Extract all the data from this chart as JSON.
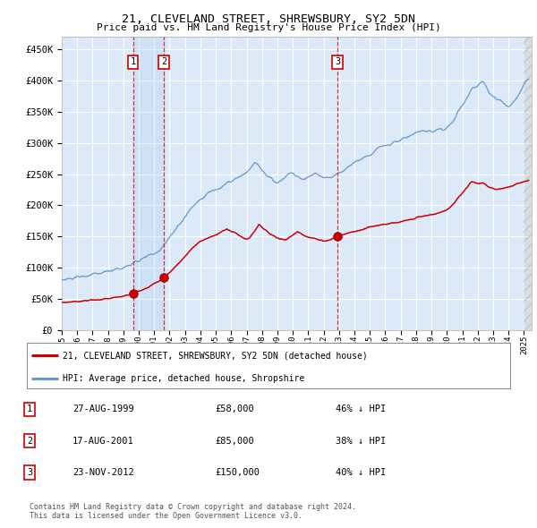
{
  "title": "21, CLEVELAND STREET, SHREWSBURY, SY2 5DN",
  "subtitle": "Price paid vs. HM Land Registry's House Price Index (HPI)",
  "ylabel_ticks": [
    "£0",
    "£50K",
    "£100K",
    "£150K",
    "£200K",
    "£250K",
    "£300K",
    "£350K",
    "£400K",
    "£450K"
  ],
  "ytick_values": [
    0,
    50000,
    100000,
    150000,
    200000,
    250000,
    300000,
    350000,
    400000,
    450000
  ],
  "ylim": [
    0,
    470000
  ],
  "xlim_start": 1995.0,
  "xlim_end": 2025.5,
  "background_color": "#dce9f8",
  "grid_color": "#ffffff",
  "sale_dates": [
    1999.63,
    2001.62,
    2012.9
  ],
  "sale_prices": [
    58000,
    85000,
    150000
  ],
  "sale_labels": [
    "1",
    "2",
    "3"
  ],
  "legend_label_red": "21, CLEVELAND STREET, SHREWSBURY, SY2 5DN (detached house)",
  "legend_label_blue": "HPI: Average price, detached house, Shropshire",
  "table_data": [
    [
      "1",
      "27-AUG-1999",
      "£58,000",
      "46% ↓ HPI"
    ],
    [
      "2",
      "17-AUG-2001",
      "£85,000",
      "38% ↓ HPI"
    ],
    [
      "3",
      "23-NOV-2012",
      "£150,000",
      "40% ↓ HPI"
    ]
  ],
  "footer_text": "Contains HM Land Registry data © Crown copyright and database right 2024.\nThis data is licensed under the Open Government Licence v3.0.",
  "red_color": "#cc0000",
  "blue_color": "#6699cc",
  "hpi_anchors": [
    [
      1995.0,
      80000
    ],
    [
      1995.5,
      82000
    ],
    [
      1996.0,
      84000
    ],
    [
      1996.5,
      86000
    ],
    [
      1997.0,
      89000
    ],
    [
      1997.5,
      91000
    ],
    [
      1998.0,
      94000
    ],
    [
      1998.5,
      98000
    ],
    [
      1999.0,
      100000
    ],
    [
      1999.5,
      105000
    ],
    [
      2000.0,
      110000
    ],
    [
      2000.5,
      118000
    ],
    [
      2001.0,
      122000
    ],
    [
      2001.5,
      132000
    ],
    [
      2002.0,
      148000
    ],
    [
      2002.5,
      165000
    ],
    [
      2003.0,
      182000
    ],
    [
      2003.5,
      198000
    ],
    [
      2004.0,
      210000
    ],
    [
      2004.5,
      220000
    ],
    [
      2005.0,
      225000
    ],
    [
      2005.3,
      228000
    ],
    [
      2005.5,
      232000
    ],
    [
      2005.8,
      236000
    ],
    [
      2006.0,
      238000
    ],
    [
      2006.3,
      242000
    ],
    [
      2006.5,
      245000
    ],
    [
      2006.8,
      248000
    ],
    [
      2007.0,
      252000
    ],
    [
      2007.2,
      258000
    ],
    [
      2007.4,
      265000
    ],
    [
      2007.5,
      270000
    ],
    [
      2007.7,
      265000
    ],
    [
      2007.9,
      258000
    ],
    [
      2008.0,
      255000
    ],
    [
      2008.2,
      250000
    ],
    [
      2008.5,
      245000
    ],
    [
      2008.8,
      238000
    ],
    [
      2009.0,
      235000
    ],
    [
      2009.2,
      240000
    ],
    [
      2009.5,
      245000
    ],
    [
      2009.7,
      250000
    ],
    [
      2010.0,
      252000
    ],
    [
      2010.2,
      248000
    ],
    [
      2010.5,
      244000
    ],
    [
      2010.8,
      242000
    ],
    [
      2011.0,
      245000
    ],
    [
      2011.2,
      248000
    ],
    [
      2011.5,
      250000
    ],
    [
      2011.8,
      248000
    ],
    [
      2012.0,
      246000
    ],
    [
      2012.3,
      244000
    ],
    [
      2012.5,
      245000
    ],
    [
      2012.7,
      248000
    ],
    [
      2012.9,
      250000
    ],
    [
      2013.0,
      252000
    ],
    [
      2013.3,
      256000
    ],
    [
      2013.5,
      260000
    ],
    [
      2013.8,
      265000
    ],
    [
      2014.0,
      268000
    ],
    [
      2014.3,
      272000
    ],
    [
      2014.5,
      276000
    ],
    [
      2014.8,
      280000
    ],
    [
      2015.0,
      283000
    ],
    [
      2015.3,
      287000
    ],
    [
      2015.5,
      291000
    ],
    [
      2015.8,
      294000
    ],
    [
      2016.0,
      296000
    ],
    [
      2016.3,
      298000
    ],
    [
      2016.5,
      300000
    ],
    [
      2016.8,
      303000
    ],
    [
      2017.0,
      305000
    ],
    [
      2017.3,
      308000
    ],
    [
      2017.5,
      311000
    ],
    [
      2017.8,
      313000
    ],
    [
      2018.0,
      315000
    ],
    [
      2018.3,
      317000
    ],
    [
      2018.5,
      318000
    ],
    [
      2018.8,
      318000
    ],
    [
      2019.0,
      318000
    ],
    [
      2019.3,
      320000
    ],
    [
      2019.5,
      321000
    ],
    [
      2019.8,
      322000
    ],
    [
      2020.0,
      325000
    ],
    [
      2020.2,
      330000
    ],
    [
      2020.5,
      340000
    ],
    [
      2020.7,
      350000
    ],
    [
      2021.0,
      360000
    ],
    [
      2021.2,
      368000
    ],
    [
      2021.4,
      375000
    ],
    [
      2021.5,
      380000
    ],
    [
      2021.6,
      385000
    ],
    [
      2021.8,
      390000
    ],
    [
      2022.0,
      393000
    ],
    [
      2022.1,
      395000
    ],
    [
      2022.2,
      398000
    ],
    [
      2022.3,
      400000
    ],
    [
      2022.4,
      397000
    ],
    [
      2022.5,
      393000
    ],
    [
      2022.6,
      388000
    ],
    [
      2022.7,
      382000
    ],
    [
      2022.9,
      378000
    ],
    [
      2023.0,
      375000
    ],
    [
      2023.2,
      370000
    ],
    [
      2023.4,
      368000
    ],
    [
      2023.6,
      365000
    ],
    [
      2023.8,
      362000
    ],
    [
      2024.0,
      360000
    ],
    [
      2024.2,
      362000
    ],
    [
      2024.3,
      365000
    ],
    [
      2024.4,
      368000
    ],
    [
      2024.5,
      372000
    ],
    [
      2024.6,
      376000
    ],
    [
      2024.7,
      380000
    ],
    [
      2024.8,
      385000
    ],
    [
      2024.9,
      390000
    ],
    [
      2025.0,
      395000
    ],
    [
      2025.1,
      398000
    ],
    [
      2025.2,
      400000
    ],
    [
      2025.3,
      403000
    ]
  ],
  "red_anchors": [
    [
      1995.0,
      44000
    ],
    [
      1995.5,
      45000
    ],
    [
      1996.0,
      46000
    ],
    [
      1996.5,
      47000
    ],
    [
      1997.0,
      48000
    ],
    [
      1997.5,
      49000
    ],
    [
      1998.0,
      50000
    ],
    [
      1998.5,
      52000
    ],
    [
      1999.0,
      54000
    ],
    [
      1999.3,
      56000
    ],
    [
      1999.63,
      58000
    ],
    [
      2000.0,
      63000
    ],
    [
      2000.5,
      68000
    ],
    [
      2001.0,
      74000
    ],
    [
      2001.3,
      78000
    ],
    [
      2001.62,
      85000
    ],
    [
      2002.0,
      92000
    ],
    [
      2002.5,
      105000
    ],
    [
      2003.0,
      118000
    ],
    [
      2003.5,
      132000
    ],
    [
      2004.0,
      142000
    ],
    [
      2004.5,
      148000
    ],
    [
      2005.0,
      152000
    ],
    [
      2005.3,
      156000
    ],
    [
      2005.5,
      160000
    ],
    [
      2005.7,
      163000
    ],
    [
      2006.0,
      158000
    ],
    [
      2006.3,
      155000
    ],
    [
      2006.5,
      152000
    ],
    [
      2006.8,
      148000
    ],
    [
      2007.0,
      145000
    ],
    [
      2007.2,
      148000
    ],
    [
      2007.3,
      152000
    ],
    [
      2007.4,
      155000
    ],
    [
      2007.5,
      158000
    ],
    [
      2007.6,
      162000
    ],
    [
      2007.7,
      166000
    ],
    [
      2007.8,
      170000
    ],
    [
      2007.9,
      168000
    ],
    [
      2008.0,
      165000
    ],
    [
      2008.2,
      160000
    ],
    [
      2008.5,
      155000
    ],
    [
      2008.7,
      152000
    ],
    [
      2009.0,
      148000
    ],
    [
      2009.2,
      146000
    ],
    [
      2009.5,
      145000
    ],
    [
      2009.7,
      148000
    ],
    [
      2010.0,
      152000
    ],
    [
      2010.2,
      155000
    ],
    [
      2010.3,
      158000
    ],
    [
      2010.5,
      155000
    ],
    [
      2010.7,
      152000
    ],
    [
      2011.0,
      150000
    ],
    [
      2011.3,
      148000
    ],
    [
      2011.5,
      146000
    ],
    [
      2011.7,
      144000
    ],
    [
      2012.0,
      143000
    ],
    [
      2012.3,
      144000
    ],
    [
      2012.5,
      146000
    ],
    [
      2012.7,
      148000
    ],
    [
      2012.9,
      150000
    ],
    [
      2013.0,
      151000
    ],
    [
      2013.3,
      153000
    ],
    [
      2013.5,
      155000
    ],
    [
      2013.8,
      157000
    ],
    [
      2014.0,
      158000
    ],
    [
      2014.3,
      160000
    ],
    [
      2014.5,
      162000
    ],
    [
      2014.8,
      164000
    ],
    [
      2015.0,
      165000
    ],
    [
      2015.3,
      167000
    ],
    [
      2015.5,
      168000
    ],
    [
      2015.7,
      169000
    ],
    [
      2016.0,
      170000
    ],
    [
      2016.2,
      170500
    ],
    [
      2016.4,
      171000
    ],
    [
      2016.6,
      171000
    ],
    [
      2016.8,
      172000
    ],
    [
      2017.0,
      173000
    ],
    [
      2017.2,
      174000
    ],
    [
      2017.4,
      175500
    ],
    [
      2017.6,
      177000
    ],
    [
      2017.8,
      178000
    ],
    [
      2018.0,
      180000
    ],
    [
      2018.2,
      181000
    ],
    [
      2018.4,
      182000
    ],
    [
      2018.6,
      183000
    ],
    [
      2018.8,
      184000
    ],
    [
      2019.0,
      185000
    ],
    [
      2019.2,
      186000
    ],
    [
      2019.5,
      188000
    ],
    [
      2019.8,
      190000
    ],
    [
      2020.0,
      193000
    ],
    [
      2020.2,
      197000
    ],
    [
      2020.5,
      205000
    ],
    [
      2020.7,
      212000
    ],
    [
      2021.0,
      220000
    ],
    [
      2021.2,
      226000
    ],
    [
      2021.4,
      232000
    ],
    [
      2021.5,
      236000
    ],
    [
      2021.6,
      238000
    ],
    [
      2021.7,
      237000
    ],
    [
      2021.8,
      236000
    ],
    [
      2022.0,
      234000
    ],
    [
      2022.2,
      235000
    ],
    [
      2022.3,
      237000
    ],
    [
      2022.4,
      236000
    ],
    [
      2022.5,
      234000
    ],
    [
      2022.6,
      232000
    ],
    [
      2022.7,
      230000
    ],
    [
      2022.9,
      228000
    ],
    [
      2023.0,
      227000
    ],
    [
      2023.2,
      226000
    ],
    [
      2023.4,
      226000
    ],
    [
      2023.6,
      227000
    ],
    [
      2023.8,
      228000
    ],
    [
      2024.0,
      229000
    ],
    [
      2024.2,
      231000
    ],
    [
      2024.4,
      233000
    ],
    [
      2024.6,
      235000
    ],
    [
      2024.8,
      237000
    ],
    [
      2025.0,
      238000
    ],
    [
      2025.2,
      239000
    ],
    [
      2025.3,
      240000
    ]
  ]
}
